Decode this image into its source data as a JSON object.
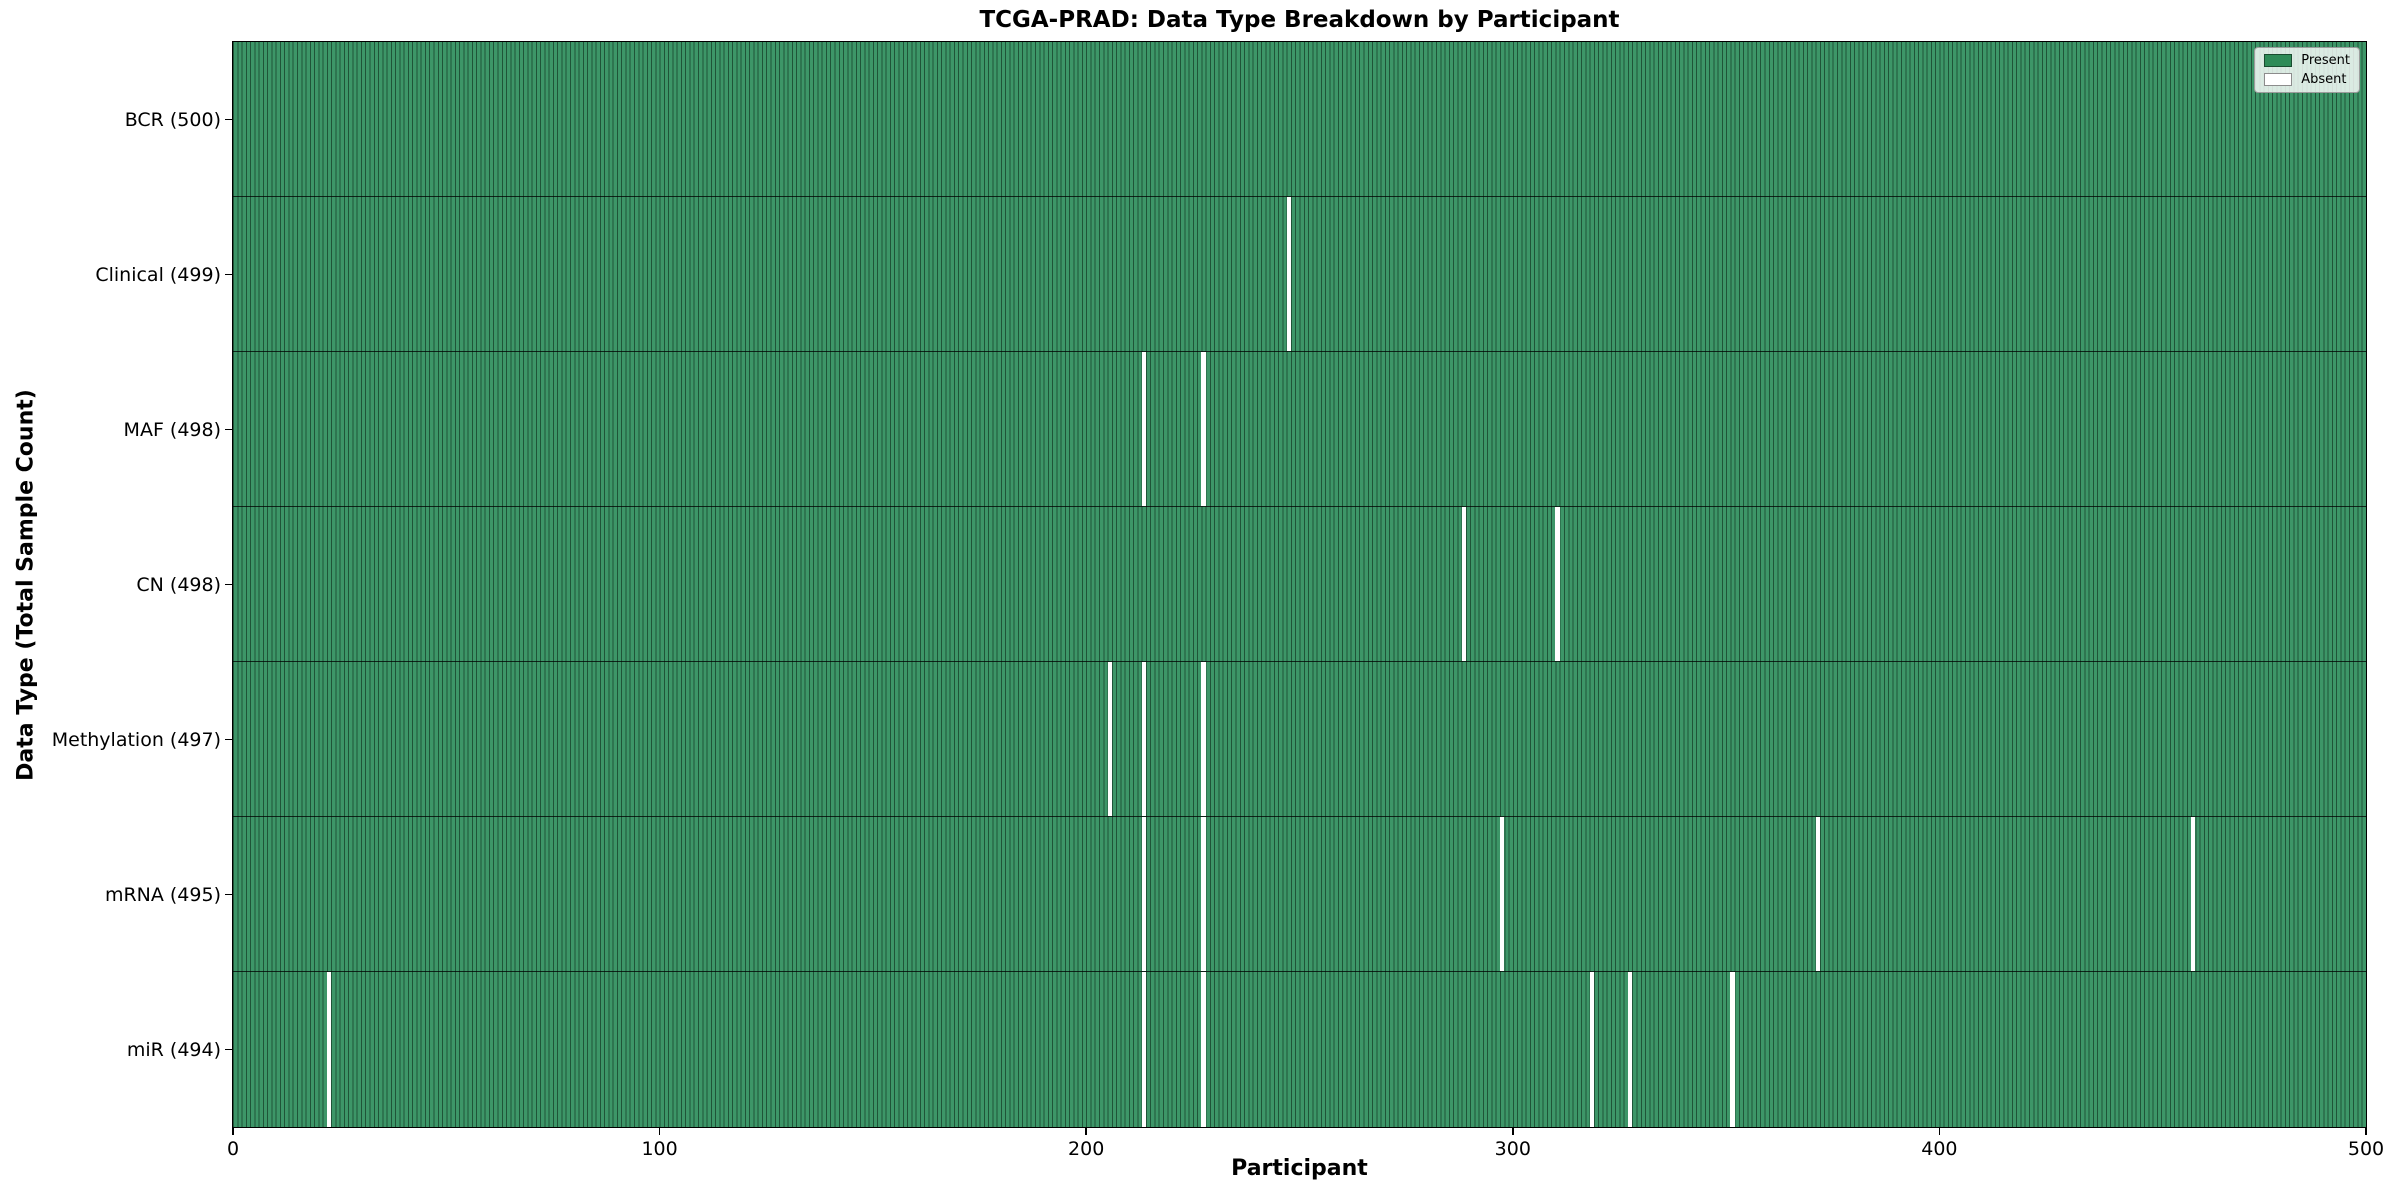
{
  "chart_data": {
    "type": "heatmap",
    "title": "TCGA-PRAD: Data Type Breakdown by Participant",
    "xlabel": "Participant",
    "ylabel": "Data Type (Total Sample Count)",
    "x_ticks": [
      0,
      100,
      200,
      300,
      400,
      500
    ],
    "x_range": [
      0,
      500
    ],
    "n_participants": 500,
    "grid": false,
    "legend": {
      "position": "upper right",
      "entries": [
        {
          "label": "Present",
          "color": "#2e8b57"
        },
        {
          "label": "Absent",
          "color": "#ffffff"
        }
      ]
    },
    "colors": {
      "present_fill": "#3d9668",
      "cell_edge": "#1f5438",
      "absent": "#ffffff",
      "row_divider": "rgba(0,0,0,0.75)",
      "axes_border": "#000000"
    },
    "rows": [
      {
        "label": "BCR (500)",
        "data_type": "BCR",
        "present_count": 500,
        "absent_participants": []
      },
      {
        "label": "Clinical (499)",
        "data_type": "Clinical",
        "present_count": 499,
        "absent_participants": [
          247
        ]
      },
      {
        "label": "MAF (498)",
        "data_type": "MAF",
        "present_count": 498,
        "absent_participants": [
          213,
          227
        ]
      },
      {
        "label": "CN (498)",
        "data_type": "CN",
        "present_count": 498,
        "absent_participants": [
          288,
          310
        ]
      },
      {
        "label": "Methylation (497)",
        "data_type": "Methylation",
        "present_count": 497,
        "absent_participants": [
          205,
          213,
          227
        ]
      },
      {
        "label": "mRNA (495)",
        "data_type": "mRNA",
        "present_count": 495,
        "absent_participants": [
          213,
          227,
          297,
          371,
          459
        ]
      },
      {
        "label": "miR (494)",
        "data_type": "miR",
        "present_count": 494,
        "absent_participants": [
          22,
          213,
          227,
          318,
          327,
          351
        ]
      }
    ]
  }
}
